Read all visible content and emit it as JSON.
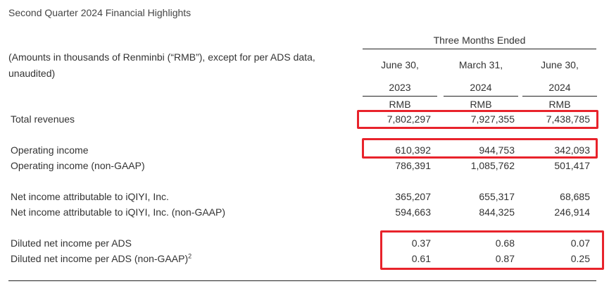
{
  "page_title": "Second Quarter 2024 Financial Highlights",
  "period_header": "Three Months Ended",
  "description": [
    "(Amounts in thousands of Renminbi (“RMB”), except for per ADS data,",
    "unaudited)"
  ],
  "columns": [
    {
      "date": "June 30,",
      "year": "2023",
      "currency": "RMB"
    },
    {
      "date": "March 31,",
      "year": "2024",
      "currency": "RMB"
    },
    {
      "date": "June 30,",
      "year": "2024",
      "currency": "RMB"
    }
  ],
  "rows": [
    {
      "label": "Total revenues",
      "values": [
        "7,802,297",
        "7,927,355",
        "7,438,785"
      ]
    },
    {
      "label": "Operating income",
      "values": [
        "610,392",
        "944,753",
        "342,093"
      ]
    },
    {
      "label": "Operating income (non-GAAP)",
      "values": [
        "786,391",
        "1,085,762",
        "501,417"
      ]
    },
    {
      "label": "Net income attributable to iQIYI, Inc.",
      "values": [
        "365,207",
        "655,317",
        "68,685"
      ]
    },
    {
      "label": "Net income attributable to iQIYI, Inc. (non-GAAP)",
      "values": [
        "594,663",
        "844,325",
        "246,914"
      ]
    },
    {
      "label": "Diluted net income per ADS",
      "values": [
        "0.37",
        "0.68",
        "0.07"
      ]
    },
    {
      "label": "Diluted net income per ADS (non-GAAP)",
      "label_sup": "2",
      "values": [
        "0.61",
        "0.87",
        "0.25"
      ]
    }
  ],
  "highlight_color": "#e8232b"
}
